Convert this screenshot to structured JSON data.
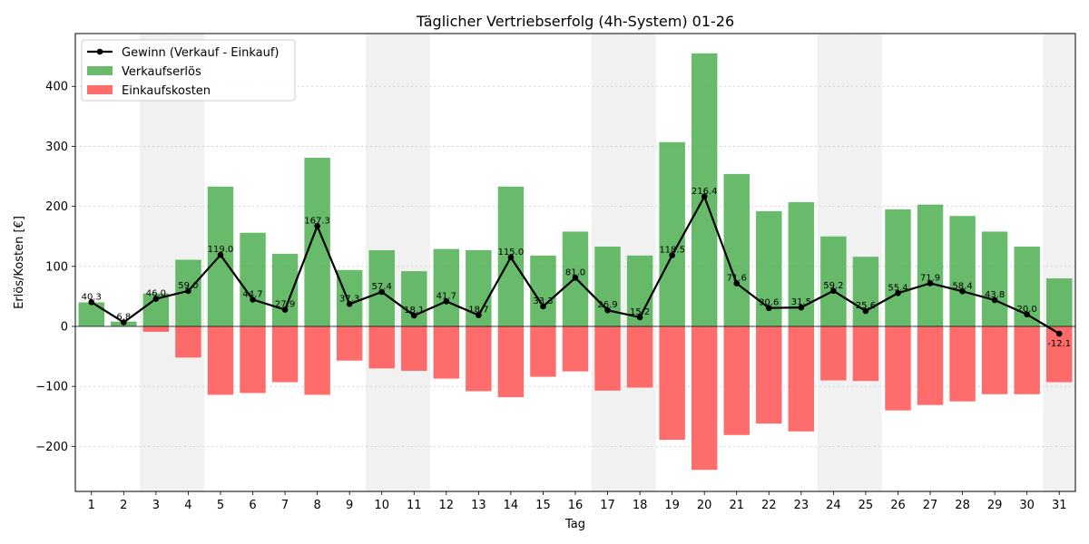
{
  "chart_data": {
    "type": "bar",
    "title": "Täglicher Vertriebserfolg (4h-System) 01-26",
    "xlabel": "Tag",
    "ylabel": "Erlös/Kosten [€]",
    "ylim": [
      -275,
      488
    ],
    "yticks": [
      -200,
      -100,
      0,
      100,
      200,
      300,
      400
    ],
    "ytick_labels": [
      "−200",
      "−100",
      "0",
      "100",
      "200",
      "300",
      "400"
    ],
    "grid": true,
    "legend_position": "top-left",
    "categories": [
      "1",
      "2",
      "3",
      "4",
      "5",
      "6",
      "7",
      "8",
      "9",
      "10",
      "11",
      "12",
      "13",
      "14",
      "15",
      "16",
      "17",
      "18",
      "19",
      "20",
      "21",
      "22",
      "23",
      "24",
      "25",
      "26",
      "27",
      "28",
      "29",
      "30",
      "31"
    ],
    "shaded_days": [
      3,
      4,
      10,
      11,
      17,
      18,
      24,
      25,
      31
    ],
    "series": [
      {
        "name": "Verkaufserlös",
        "kind": "bar",
        "color": "#4caf50",
        "values": [
          40,
          8,
          55,
          111,
          233,
          156,
          121,
          281,
          94,
          127,
          92,
          129,
          127,
          233,
          118,
          158,
          133,
          118,
          307,
          455,
          254,
          192,
          207,
          150,
          116,
          195,
          203,
          184,
          158,
          133,
          80
        ]
      },
      {
        "name": "Einkaufskosten",
        "kind": "bar",
        "color": "#ff5252",
        "values": [
          0,
          0,
          -9,
          -52,
          -114,
          -111,
          -93,
          -114,
          -57,
          -70,
          -74,
          -87,
          -108,
          -118,
          -84,
          -75,
          -107,
          -102,
          -189,
          -239,
          -181,
          -162,
          -175,
          -90,
          -91,
          -140,
          -131,
          -125,
          -113,
          -113,
          -93
        ]
      },
      {
        "name": "Gewinn (Verkauf - Einkauf)",
        "kind": "line",
        "color": "#000000",
        "values": [
          40.3,
          6.8,
          46.0,
          59.0,
          119.0,
          44.7,
          27.9,
          167.3,
          37.3,
          57.4,
          18.1,
          41.7,
          18.7,
          115.0,
          33.3,
          81.0,
          26.9,
          15.2,
          118.5,
          216.4,
          71.6,
          30.6,
          31.5,
          59.2,
          25.6,
          55.4,
          71.9,
          58.4,
          43.8,
          20.0,
          -12.1
        ],
        "labels": [
          "40.3",
          "6.8",
          "46.0",
          "59.0",
          "119.0",
          "44.7",
          "27.9",
          "167.3",
          "37.3",
          "57.4",
          "18.1",
          "41.7",
          "18.7",
          "115.0",
          "33.3",
          "81.0",
          "26.9",
          "15.2",
          "118.5",
          "216.4",
          "71.6",
          "30.6",
          "31.5",
          "59.2",
          "25.6",
          "55.4",
          "71.9",
          "58.4",
          "43.8",
          "20.0",
          "-12.1"
        ]
      }
    ]
  }
}
